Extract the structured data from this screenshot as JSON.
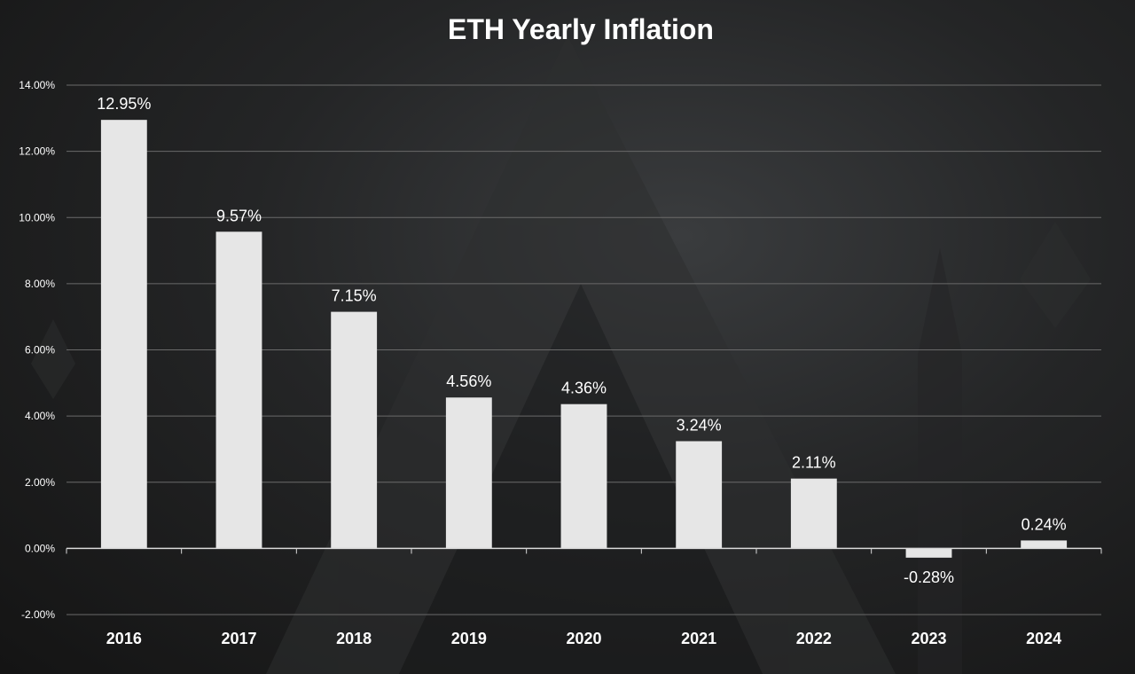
{
  "chart_data": {
    "type": "bar",
    "title": "ETH Yearly Inflation",
    "categories": [
      "2016",
      "2017",
      "2018",
      "2019",
      "2020",
      "2021",
      "2022",
      "2023",
      "2024"
    ],
    "values": [
      12.95,
      9.57,
      7.15,
      4.56,
      4.36,
      3.24,
      2.11,
      -0.28,
      0.24
    ],
    "data_labels": [
      "12.95%",
      "9.57%",
      "7.15%",
      "4.56%",
      "4.36%",
      "3.24%",
      "2.11%",
      "-0.28%",
      "0.24%"
    ],
    "y_ticks": [
      -2,
      0,
      2,
      4,
      6,
      8,
      10,
      12,
      14
    ],
    "y_tick_labels": [
      "-2.00%",
      "0.00%",
      "2.00%",
      "4.00%",
      "6.00%",
      "8.00%",
      "10.00%",
      "12.00%",
      "14.00%"
    ],
    "ylim": [
      -2,
      14
    ],
    "xlabel": "",
    "ylabel": "",
    "grid": true,
    "legend": "none",
    "colors": {
      "bar": "#e6e6e6",
      "gridline": "#6a6a6a",
      "axis": "#d9d9d9",
      "text": "#ffffff"
    }
  }
}
